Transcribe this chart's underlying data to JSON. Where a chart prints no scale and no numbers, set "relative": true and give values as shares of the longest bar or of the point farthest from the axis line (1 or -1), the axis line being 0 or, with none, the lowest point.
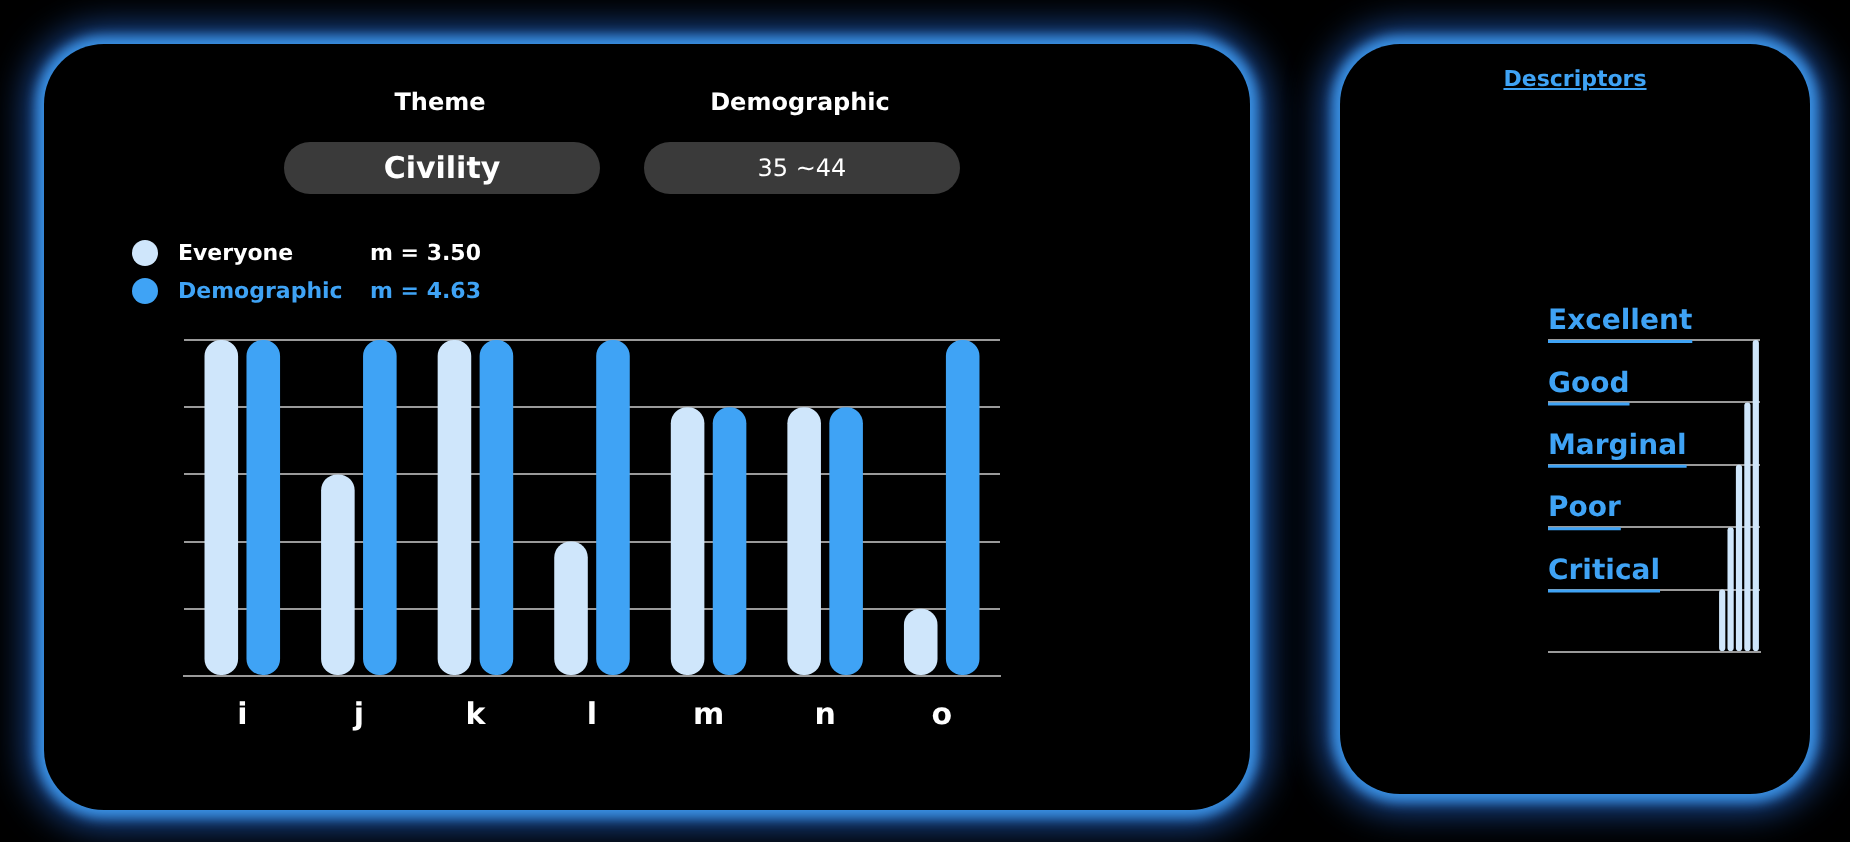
{
  "chart_data": [
    {
      "type": "bar",
      "relative": true,
      "annotations": [
        "Theme",
        "Civility",
        "Demographic",
        "35 ~44",
        "m = 3.50",
        "m = 4.63"
      ],
      "categories": [
        "i",
        "j",
        "k",
        "l",
        "m",
        "n",
        "o"
      ],
      "series": [
        {
          "name": "Everyone",
          "color": "#cfe6fb",
          "values": [
            1,
            0.6,
            1,
            0.4,
            0.8,
            0.8,
            0.2
          ]
        },
        {
          "name": "Demographic",
          "color": "#3fa3f5",
          "values": [
            1,
            1,
            1,
            1,
            0.8,
            0.8,
            1
          ]
        }
      ],
      "grid": "y",
      "legend": "top left"
    },
    {
      "type": "bar",
      "relative": true,
      "title": "Descriptors",
      "categories": [
        null,
        null,
        null,
        null,
        null
      ],
      "series": [
        {
          "color": "#cfe6fb",
          "values": [
            0.2,
            0.4,
            0.6,
            0.8,
            1
          ]
        }
      ],
      "annotations": [
        "Critical",
        "Poor",
        "Marginal",
        "Good",
        "Excellent"
      ],
      "grid": "y",
      "tick_labels": false
    }
  ]
}
